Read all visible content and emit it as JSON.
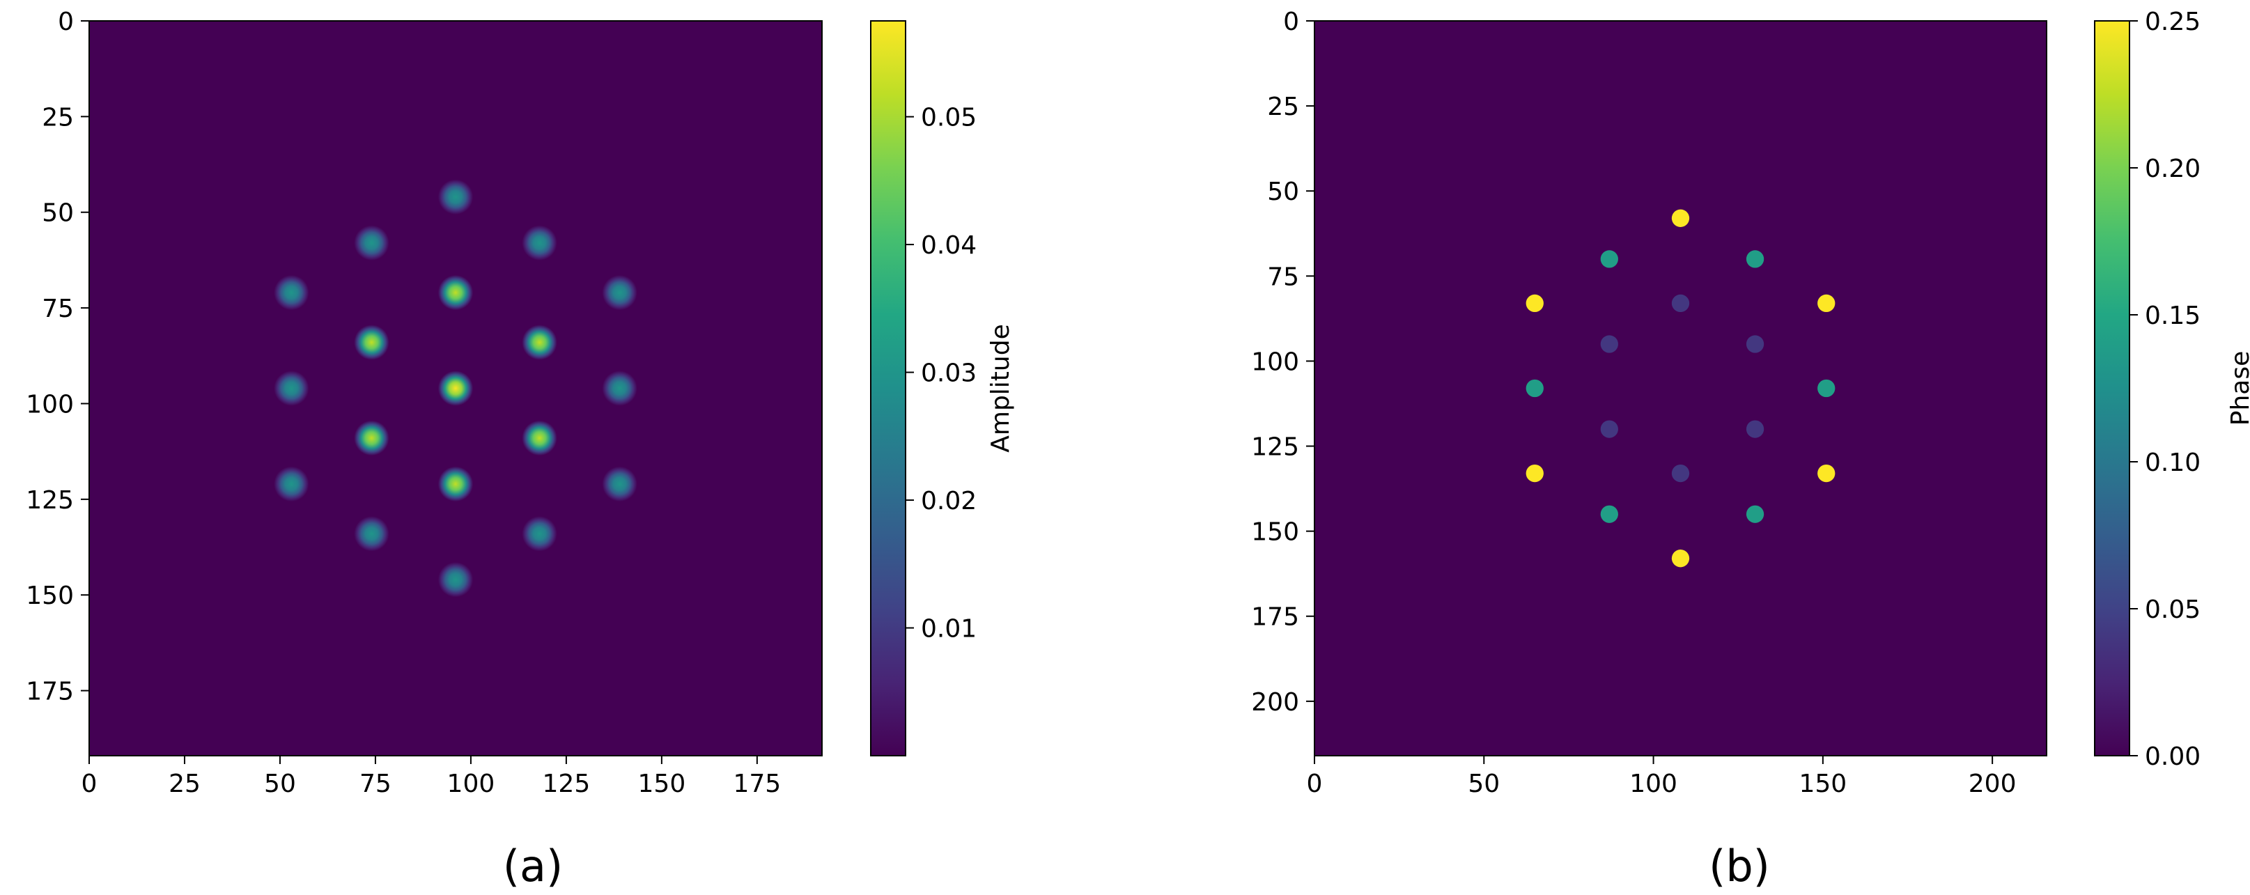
{
  "chart_data": [
    {
      "type": "heatmap",
      "caption": "(a)",
      "x_ticks": [
        0,
        25,
        50,
        75,
        100,
        125,
        150,
        175
      ],
      "y_ticks": [
        0,
        25,
        50,
        75,
        100,
        125,
        150,
        175
      ],
      "xlim": [
        0,
        192
      ],
      "ylim": [
        192,
        0
      ],
      "colormap": "viridis",
      "colorbar": {
        "label": "Amplitude",
        "range": [
          0,
          0.0575
        ],
        "ticks": [
          0.01,
          0.02,
          0.03,
          0.04,
          0.05
        ],
        "tick_labels": [
          "0.01",
          "0.02",
          "0.03",
          "0.04",
          "0.05"
        ]
      },
      "background_value": 0,
      "spot_profile": "gaussian",
      "spots": [
        {
          "x": 96,
          "y": 46,
          "value": 0.03
        },
        {
          "x": 74,
          "y": 58,
          "value": 0.03
        },
        {
          "x": 118,
          "y": 58,
          "value": 0.03
        },
        {
          "x": 53,
          "y": 71,
          "value": 0.03
        },
        {
          "x": 96,
          "y": 71,
          "value": 0.052
        },
        {
          "x": 139,
          "y": 71,
          "value": 0.03
        },
        {
          "x": 74,
          "y": 84,
          "value": 0.052
        },
        {
          "x": 118,
          "y": 84,
          "value": 0.052
        },
        {
          "x": 53,
          "y": 96,
          "value": 0.03
        },
        {
          "x": 96,
          "y": 96,
          "value": 0.057
        },
        {
          "x": 139,
          "y": 96,
          "value": 0.03
        },
        {
          "x": 74,
          "y": 109,
          "value": 0.052
        },
        {
          "x": 118,
          "y": 109,
          "value": 0.052
        },
        {
          "x": 53,
          "y": 121,
          "value": 0.03
        },
        {
          "x": 96,
          "y": 121,
          "value": 0.052
        },
        {
          "x": 139,
          "y": 121,
          "value": 0.03
        },
        {
          "x": 74,
          "y": 134,
          "value": 0.03
        },
        {
          "x": 118,
          "y": 134,
          "value": 0.03
        },
        {
          "x": 96,
          "y": 146,
          "value": 0.03
        }
      ]
    },
    {
      "type": "heatmap",
      "caption": "(b)",
      "x_ticks": [
        0,
        50,
        100,
        150,
        200
      ],
      "y_ticks": [
        0,
        25,
        50,
        75,
        100,
        125,
        150,
        175,
        200
      ],
      "xlim": [
        0,
        216
      ],
      "ylim": [
        216,
        0
      ],
      "colormap": "viridis",
      "colorbar": {
        "label": "Phase",
        "range": [
          0,
          0.25
        ],
        "ticks": [
          0.0,
          0.05,
          0.1,
          0.15,
          0.2,
          0.25
        ],
        "tick_labels": [
          "0.00",
          "0.05",
          "0.10",
          "0.15",
          "0.20",
          "0.25"
        ]
      },
      "background_value": 0,
      "spot_profile": "flat",
      "spots": [
        {
          "x": 108,
          "y": 58,
          "value": 0.25
        },
        {
          "x": 87,
          "y": 70,
          "value": 0.14
        },
        {
          "x": 130,
          "y": 70,
          "value": 0.14
        },
        {
          "x": 65,
          "y": 83,
          "value": 0.25
        },
        {
          "x": 108,
          "y": 83,
          "value": 0.04
        },
        {
          "x": 151,
          "y": 83,
          "value": 0.25
        },
        {
          "x": 87,
          "y": 95,
          "value": 0.04
        },
        {
          "x": 130,
          "y": 95,
          "value": 0.04
        },
        {
          "x": 65,
          "y": 108,
          "value": 0.14
        },
        {
          "x": 151,
          "y": 108,
          "value": 0.14
        },
        {
          "x": 87,
          "y": 120,
          "value": 0.04
        },
        {
          "x": 130,
          "y": 120,
          "value": 0.04
        },
        {
          "x": 65,
          "y": 133,
          "value": 0.25
        },
        {
          "x": 108,
          "y": 133,
          "value": 0.04
        },
        {
          "x": 151,
          "y": 133,
          "value": 0.25
        },
        {
          "x": 87,
          "y": 145,
          "value": 0.14
        },
        {
          "x": 130,
          "y": 145,
          "value": 0.14
        },
        {
          "x": 108,
          "y": 158,
          "value": 0.25
        }
      ]
    }
  ]
}
